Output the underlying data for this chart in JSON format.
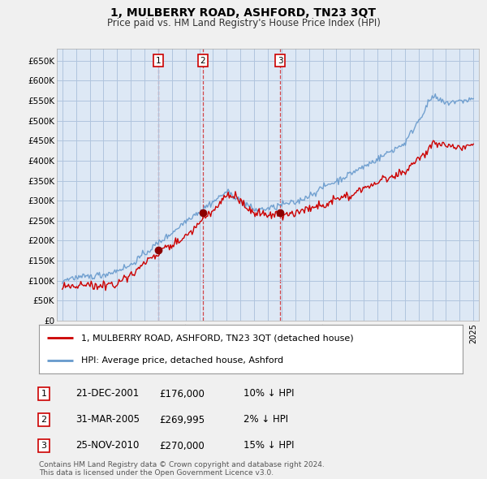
{
  "title": "1, MULBERRY ROAD, ASHFORD, TN23 3QT",
  "subtitle": "Price paid vs. HM Land Registry's House Price Index (HPI)",
  "ylabel_ticks": [
    "£0",
    "£50K",
    "£100K",
    "£150K",
    "£200K",
    "£250K",
    "£300K",
    "£350K",
    "£400K",
    "£450K",
    "£500K",
    "£550K",
    "£600K",
    "£650K"
  ],
  "ytick_values": [
    0,
    50000,
    100000,
    150000,
    200000,
    250000,
    300000,
    350000,
    400000,
    450000,
    500000,
    550000,
    600000,
    650000
  ],
  "ylim": [
    0,
    680000
  ],
  "xlim_left": 1994.6,
  "xlim_right": 2025.4,
  "background_color": "#f0f0f0",
  "plot_bg_color": "#dde8f5",
  "grid_color": "#b0c4de",
  "red_line_color": "#cc0000",
  "blue_line_color": "#6699cc",
  "sale_marker_color": "#8b0000",
  "vline_color": "#cc0000",
  "sales": [
    {
      "num": 1,
      "date": "21-DEC-2001",
      "price": 176000,
      "x_year": 2002.0
    },
    {
      "num": 2,
      "date": "31-MAR-2005",
      "price": 269995,
      "x_year": 2005.25
    },
    {
      "num": 3,
      "date": "25-NOV-2010",
      "price": 270000,
      "x_year": 2010.9
    }
  ],
  "legend_label_red": "1, MULBERRY ROAD, ASHFORD, TN23 3QT (detached house)",
  "legend_label_blue": "HPI: Average price, detached house, Ashford",
  "footer": "Contains HM Land Registry data © Crown copyright and database right 2024.\nThis data is licensed under the Open Government Licence v3.0.",
  "table_rows": [
    {
      "num": "1",
      "date": "21-DEC-2001",
      "price": "£176,000",
      "info": "10% ↓ HPI"
    },
    {
      "num": "2",
      "date": "31-MAR-2005",
      "price": "£269,995",
      "info": "2% ↓ HPI"
    },
    {
      "num": "3",
      "date": "25-NOV-2010",
      "price": "£270,000",
      "info": "15% ↓ HPI"
    }
  ]
}
